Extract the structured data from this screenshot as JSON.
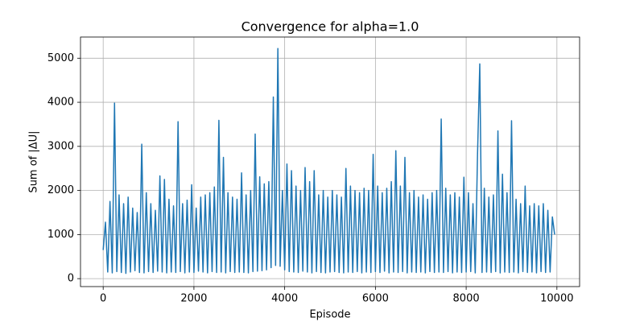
{
  "chart_data": {
    "type": "line",
    "title": "Convergence for alpha=1.0",
    "x_label": "Episode",
    "y_label": "Sum of |ΔU|",
    "color": "#1f77b4",
    "grid": true,
    "xlim": [
      -500,
      10500
    ],
    "ylim": [
      -180,
      5480
    ],
    "xticks": [
      0,
      2000,
      4000,
      6000,
      8000,
      10000
    ],
    "yticks": [
      0,
      1000,
      2000,
      3000,
      4000,
      5000
    ],
    "x": [
      0,
      50,
      100,
      150,
      200,
      250,
      300,
      350,
      400,
      450,
      500,
      550,
      600,
      650,
      700,
      750,
      800,
      850,
      900,
      950,
      1000,
      1050,
      1100,
      1150,
      1200,
      1250,
      1300,
      1350,
      1400,
      1450,
      1500,
      1550,
      1600,
      1650,
      1700,
      1750,
      1800,
      1850,
      1900,
      1950,
      2000,
      2050,
      2100,
      2150,
      2200,
      2250,
      2300,
      2350,
      2400,
      2450,
      2500,
      2550,
      2600,
      2650,
      2700,
      2750,
      2800,
      2850,
      2900,
      2950,
      3000,
      3050,
      3100,
      3150,
      3200,
      3250,
      3300,
      3350,
      3400,
      3450,
      3500,
      3550,
      3600,
      3650,
      3700,
      3750,
      3800,
      3850,
      3900,
      3950,
      4000,
      4050,
      4100,
      4150,
      4200,
      4250,
      4300,
      4350,
      4400,
      4450,
      4500,
      4550,
      4600,
      4650,
      4700,
      4750,
      4800,
      4850,
      4900,
      4950,
      5000,
      5050,
      5100,
      5150,
      5200,
      5250,
      5300,
      5350,
      5400,
      5450,
      5500,
      5550,
      5600,
      5650,
      5700,
      5750,
      5800,
      5850,
      5900,
      5950,
      6000,
      6050,
      6100,
      6150,
      6200,
      6250,
      6300,
      6350,
      6400,
      6450,
      6500,
      6550,
      6600,
      6650,
      6700,
      6750,
      6800,
      6850,
      6900,
      6950,
      7000,
      7050,
      7100,
      7150,
      7200,
      7250,
      7300,
      7350,
      7400,
      7450,
      7500,
      7550,
      7600,
      7650,
      7700,
      7750,
      7800,
      7850,
      7900,
      7950,
      8000,
      8050,
      8100,
      8150,
      8200,
      8250,
      8300,
      8350,
      8400,
      8450,
      8500,
      8550,
      8600,
      8650,
      8700,
      8750,
      8800,
      8850,
      8900,
      8950,
      9000,
      9050,
      9100,
      9150,
      9200,
      9250,
      9300,
      9350,
      9400,
      9450,
      9500,
      9550,
      9600,
      9650,
      9700,
      9750,
      9800,
      9850,
      9900,
      9950
    ],
    "values": [
      650,
      1280,
      150,
      1750,
      130,
      3980,
      160,
      1900,
      140,
      1700,
      120,
      1850,
      150,
      1600,
      180,
      1500,
      140,
      3050,
      130,
      1950,
      160,
      1700,
      140,
      1550,
      170,
      2330,
      150,
      2250,
      130,
      1800,
      150,
      1650,
      140,
      3560,
      160,
      1700,
      130,
      1780,
      150,
      2130,
      140,
      1600,
      170,
      1850,
      150,
      1900,
      130,
      1950,
      160,
      2080,
      140,
      3590,
      150,
      2750,
      130,
      1950,
      160,
      1850,
      140,
      1800,
      150,
      2400,
      140,
      1900,
      130,
      2000,
      160,
      3280,
      170,
      2310,
      180,
      2150,
      200,
      2200,
      250,
      4120,
      300,
      5220,
      280,
      2000,
      200,
      2600,
      160,
      2450,
      150,
      2100,
      140,
      2000,
      170,
      2520,
      150,
      2200,
      130,
      2450,
      160,
      1900,
      140,
      2000,
      130,
      1850,
      150,
      2000,
      160,
      1900,
      140,
      1850,
      130,
      2500,
      150,
      2100,
      140,
      2000,
      160,
      1950,
      130,
      2050,
      150,
      2000,
      140,
      2820,
      160,
      2100,
      140,
      1950,
      170,
      2050,
      130,
      2200,
      150,
      2900,
      140,
      2100,
      160,
      2750,
      130,
      1950,
      150,
      2000,
      140,
      1850,
      150,
      1900,
      130,
      1800,
      160,
      1950,
      140,
      2000,
      150,
      3620,
      140,
      2050,
      160,
      1900,
      130,
      1950,
      150,
      1850,
      140,
      2300,
      150,
      1950,
      160,
      1700,
      130,
      2800,
      4870,
      140,
      2050,
      150,
      1850,
      140,
      1900,
      160,
      3350,
      130,
      2370,
      150,
      1950,
      140,
      3580,
      150,
      1800,
      130,
      1700,
      160,
      2100,
      140,
      1650,
      150,
      1700,
      130,
      1650,
      160,
      1700,
      140,
      1550,
      150,
      1400,
      1000
    ]
  }
}
